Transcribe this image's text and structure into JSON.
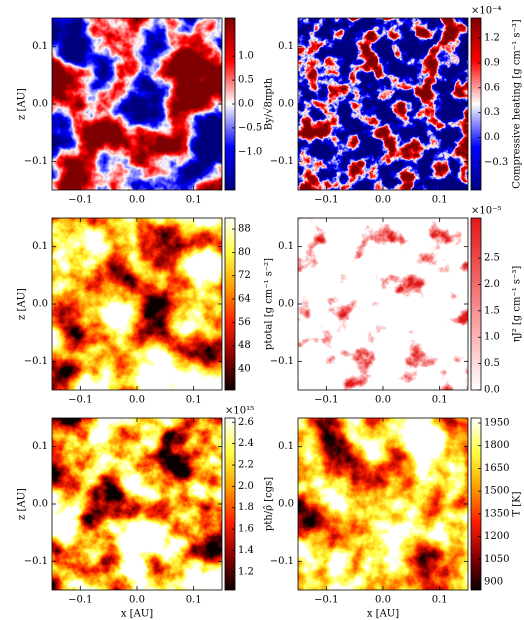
{
  "chart_data": [
    {
      "type": "heatmap",
      "ylabel": "z [AU]",
      "xlim": [
        -0.15,
        0.15
      ],
      "ylim": [
        -0.15,
        0.15
      ],
      "xticks": [
        {
          "value": -0.1,
          "label": "−0.1"
        },
        {
          "value": 0,
          "label": "0.0"
        },
        {
          "value": 0.1,
          "label": "0.1"
        }
      ],
      "yticks": [
        {
          "value": -0.1,
          "label": "−0.1"
        },
        {
          "value": 0,
          "label": "0.0"
        },
        {
          "value": 0.1,
          "label": "0.1"
        }
      ],
      "colorbar": {
        "label": "By/√8πpth",
        "lim": [
          -1.8,
          1.8
        ],
        "ticks": [
          {
            "value": -1,
            "label": "−1.0"
          },
          {
            "value": -0.5,
            "label": "−0.5"
          },
          {
            "value": 0,
            "label": "0.0"
          },
          {
            "value": 0.5,
            "label": "0.5"
          },
          {
            "value": 1,
            "label": "1.0"
          }
        ],
        "colormap": [
          "#00007f",
          "#0000ff",
          "#ffffff",
          "#ff0000",
          "#7f0000"
        ]
      }
    },
    {
      "type": "heatmap",
      "xlim": [
        -0.15,
        0.15
      ],
      "ylim": [
        -0.15,
        0.15
      ],
      "xticks": [
        {
          "value": -0.1,
          "label": "−0.1"
        },
        {
          "value": 0,
          "label": "0.0"
        },
        {
          "value": 0.1,
          "label": "0.1"
        }
      ],
      "yticks": [
        {
          "value": -0.1,
          "label": "−0.1"
        },
        {
          "value": 0,
          "label": "0.0"
        },
        {
          "value": 0.1,
          "label": "0.1"
        }
      ],
      "colorbar": {
        "label": "Compressive heating [g cm⁻¹ s⁻³]",
        "offset": "×10⁻⁴",
        "lim": [
          -0.63,
          1.44
        ],
        "ticks": [
          {
            "value": -0.3,
            "label": "−0.3"
          },
          {
            "value": 0,
            "label": "0.0"
          },
          0.3,
          0.6,
          0.9,
          1.2
        ],
        "colormap": [
          "#00007f",
          "#0000ff",
          "#ffffff",
          "#ff0000",
          "#7f0000"
        ]
      }
    },
    {
      "type": "heatmap",
      "ylabel": "z [AU]",
      "xlim": [
        -0.15,
        0.15
      ],
      "ylim": [
        -0.15,
        0.15
      ],
      "xticks": [
        {
          "value": -0.1,
          "label": "−0.1"
        },
        {
          "value": 0,
          "label": "0.0"
        },
        {
          "value": 0.1,
          "label": "0.1"
        }
      ],
      "yticks": [
        {
          "value": -0.1,
          "label": "−0.1"
        },
        {
          "value": 0,
          "label": "0.0"
        },
        {
          "value": 0.1,
          "label": "0.1"
        }
      ],
      "colorbar": {
        "label": "ptotal [g cm⁻¹ s⁻²]",
        "lim": [
          32.8,
          91.8
        ],
        "ticks": [
          40,
          48,
          56,
          64,
          72,
          80,
          88
        ],
        "colormap": [
          "#0a0000",
          "#8b0000",
          "#ff2000",
          "#ffa000",
          "#ffff40",
          "#ffffff"
        ]
      }
    },
    {
      "type": "heatmap",
      "xlim": [
        -0.15,
        0.15
      ],
      "ylim": [
        -0.15,
        0.15
      ],
      "xticks": [
        {
          "value": -0.1,
          "label": "−0.1"
        },
        {
          "value": 0,
          "label": "0.0"
        },
        {
          "value": 0.1,
          "label": "0.1"
        }
      ],
      "yticks": [
        {
          "value": -0.1,
          "label": "−0.1"
        },
        {
          "value": 0,
          "label": "0.0"
        },
        {
          "value": 0.1,
          "label": "0.1"
        }
      ],
      "colorbar": {
        "label": "ηJ² [g cm⁻¹ s⁻³]",
        "offset": "×10⁻⁵",
        "lim": [
          0,
          3.26
        ],
        "ticks": [
          {
            "value": 0,
            "label": "0.0"
          },
          0.5,
          {
            "value": 1,
            "label": "1.0"
          },
          1.5,
          {
            "value": 2,
            "label": "2.0"
          },
          2.5
        ],
        "colormap": [
          "#ffffff",
          "#fbb0b0",
          "#f06060",
          "#e01818"
        ]
      }
    },
    {
      "type": "heatmap",
      "ylabel": "z [AU]",
      "xlabel": "x [AU]",
      "xlim": [
        -0.15,
        0.15
      ],
      "ylim": [
        -0.15,
        0.15
      ],
      "xticks": [
        {
          "value": -0.1,
          "label": "−0.1"
        },
        {
          "value": 0,
          "label": "0.0"
        },
        {
          "value": 0.1,
          "label": "0.1"
        }
      ],
      "yticks": [
        {
          "value": -0.1,
          "label": "−0.1"
        },
        {
          "value": 0,
          "label": "0.0"
        },
        {
          "value": 0.1,
          "label": "0.1"
        }
      ],
      "colorbar": {
        "label": "pth/ρ̂ [cgs]",
        "offset": "×10¹⁵",
        "lim": [
          1.03,
          2.64
        ],
        "ticks": [
          1.2,
          1.4,
          1.6,
          1.8,
          {
            "value": 2,
            "label": "2.0"
          },
          2.2,
          2.4,
          2.6
        ],
        "colormap": [
          "#0a0000",
          "#8b0000",
          "#ff2000",
          "#ffa000",
          "#ffff40",
          "#ffffff"
        ]
      }
    },
    {
      "type": "heatmap",
      "xlabel": "x [AU]",
      "xlim": [
        -0.15,
        0.15
      ],
      "ylim": [
        -0.15,
        0.15
      ],
      "xticks": [
        {
          "value": -0.1,
          "label": "−0.1"
        },
        {
          "value": 0,
          "label": "0.0"
        },
        {
          "value": 0.1,
          "label": "0.1"
        }
      ],
      "yticks": [
        {
          "value": -0.1,
          "label": "−0.1"
        },
        {
          "value": 0,
          "label": "0.0"
        },
        {
          "value": 0.1,
          "label": "0.1"
        }
      ],
      "colorbar": {
        "label": "T [K]",
        "lim": [
          847,
          1983
        ],
        "ticks": [
          900,
          1050,
          1200,
          1350,
          1500,
          1650,
          1800,
          1950
        ],
        "colormap": [
          "#0a0000",
          "#8b0000",
          "#ff2000",
          "#ffa000",
          "#ffff40",
          "#ffffff"
        ]
      }
    }
  ]
}
